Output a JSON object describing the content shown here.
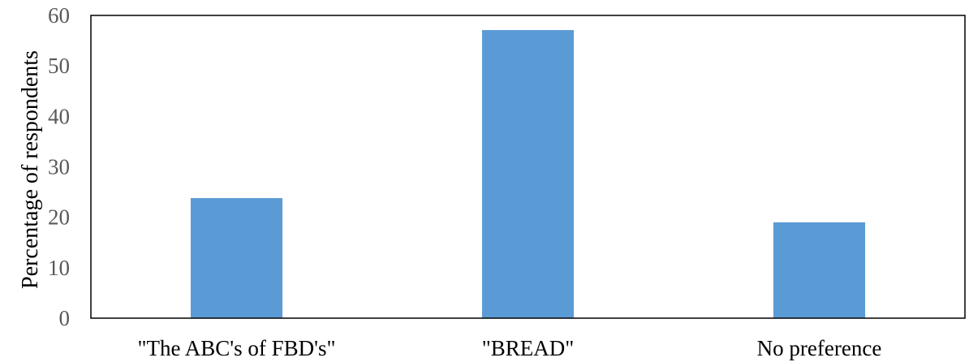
{
  "chart_data": {
    "type": "bar",
    "title": "",
    "xlabel": "",
    "ylabel": "Percentage of respondents",
    "categories": [
      "\"The ABC's of FBD's\"",
      "\"BREAD\"",
      "No preference"
    ],
    "values": [
      23.8,
      57.1,
      19.0
    ],
    "ylim": [
      0,
      60
    ],
    "yticks": [
      0,
      10,
      20,
      30,
      40,
      50,
      60
    ],
    "grid": false,
    "legend": "none",
    "bar_color": "#5B9BD5",
    "axis_color": "#000000"
  }
}
